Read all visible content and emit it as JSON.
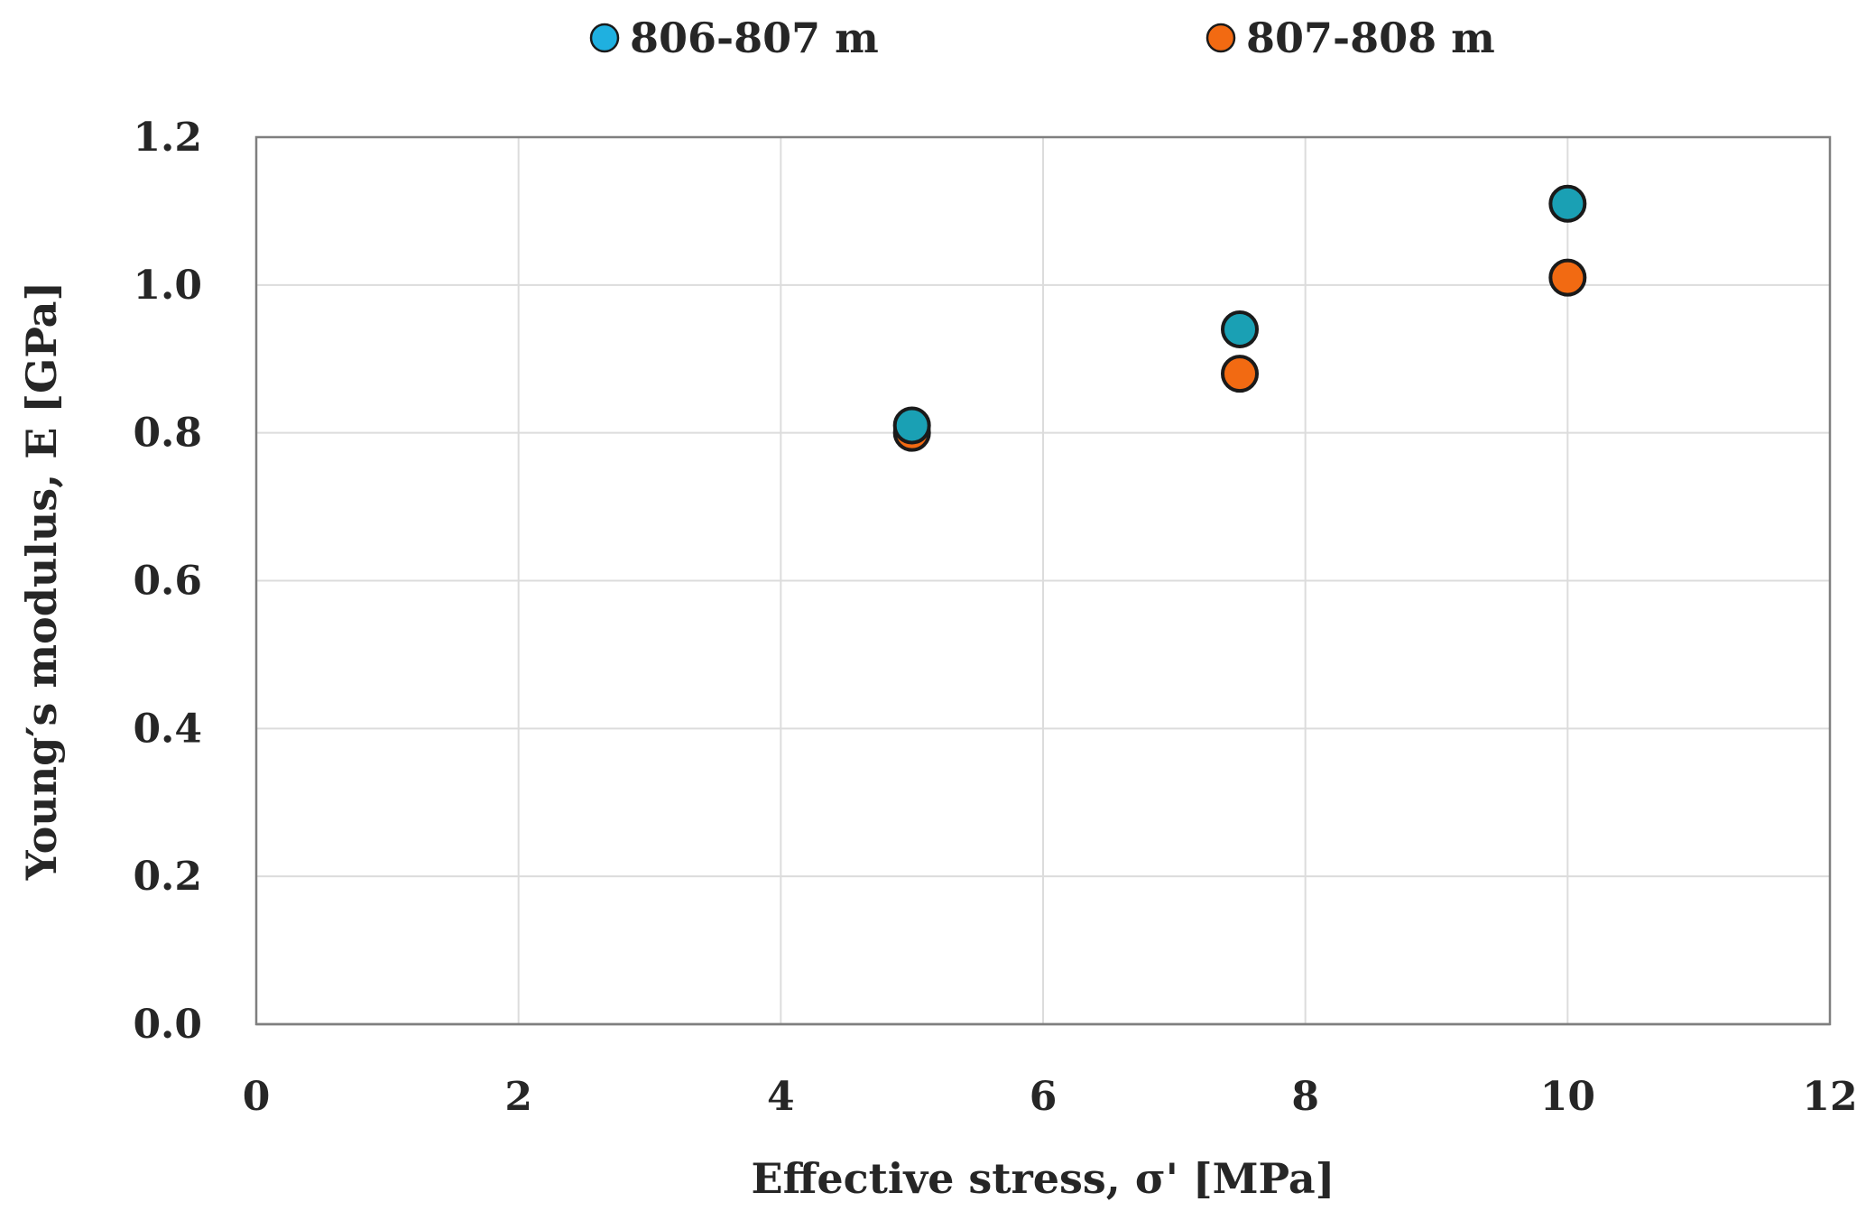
{
  "chart_data": {
    "type": "scatter",
    "title": "",
    "xlabel": "Effective stress, σ' [MPa]",
    "ylabel": "Young′s modulus, E [GPa]",
    "xlim": [
      0,
      12
    ],
    "ylim": [
      0,
      1.2
    ],
    "xticks": [
      "0",
      "2",
      "4",
      "6",
      "8",
      "10",
      "12"
    ],
    "yticks": [
      "0.0",
      "0.2",
      "0.4",
      "0.6",
      "0.8",
      "1.0",
      "1.2"
    ],
    "grid": true,
    "legend_position": "top",
    "series": [
      {
        "name": "806-807 m",
        "color": "#1aa0b4",
        "legend_color": "#1fb0e0",
        "points": [
          {
            "x": 5,
            "y": 0.81
          },
          {
            "x": 7.5,
            "y": 0.94
          },
          {
            "x": 10,
            "y": 1.11
          }
        ]
      },
      {
        "name": "807-808 m",
        "color": "#f26a12",
        "legend_color": "#f26a12",
        "points": [
          {
            "x": 5,
            "y": 0.8
          },
          {
            "x": 7.5,
            "y": 0.88
          },
          {
            "x": 10,
            "y": 1.01
          }
        ]
      }
    ]
  }
}
